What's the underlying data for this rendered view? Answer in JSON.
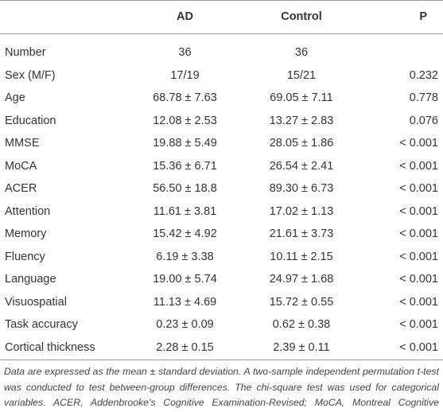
{
  "table": {
    "columns": [
      "AD",
      "Control",
      "P"
    ],
    "rows": [
      [
        "Number",
        "36",
        "36",
        null
      ],
      [
        "Sex (M/F)",
        "17/19",
        "15/21",
        "0.232"
      ],
      [
        "Age",
        "68.78 ± 7.63",
        "69.05 ± 7.11",
        "0.778"
      ],
      [
        "Education",
        "12.08 ± 2.53",
        "13.27 ± 2.83",
        "0.076"
      ],
      [
        "MMSE",
        "19.88 ± 5.49",
        "28.05 ± 1.86",
        "< 0.001"
      ],
      [
        "MoCA",
        "15.36 ± 6.71",
        "26.54 ± 2.41",
        "< 0.001"
      ],
      [
        "ACER",
        "56.50 ± 18.8",
        "89.30 ± 6.73",
        "< 0.001"
      ],
      [
        "Attention",
        "11.61 ± 3.81",
        "17.02 ± 1.13",
        "< 0.001"
      ],
      [
        "Memory",
        "15.42 ± 4.92",
        "21.61 ± 3.73",
        "< 0.001"
      ],
      [
        "Fluency",
        "6.19 ± 3.38",
        "10.11 ± 2.15",
        "< 0.001"
      ],
      [
        "Language",
        "19.00 ± 5.74",
        "24.97 ± 1.68",
        "< 0.001"
      ],
      [
        "Visuospatial",
        "11.13 ± 4.69",
        "15.72 ± 0.55",
        "< 0.001"
      ],
      [
        "Task accuracy",
        "0.23 ± 0.09",
        "0.62 ± 0.38",
        "< 0.001"
      ],
      [
        "Cortical thickness",
        "2.28 ± 0.15",
        "2.39 ± 0.11",
        "< 0.001"
      ]
    ],
    "footnote": "Data are expressed as the mean ± standard deviation. A two-sample independent permutation t-test was conducted to test between-group differences. The chi-square test was used for categorical variables. ACER, Addenbrooke's Cognitive Examination-Revised; MoCA, Montreal Cognitive Assessment."
  }
}
